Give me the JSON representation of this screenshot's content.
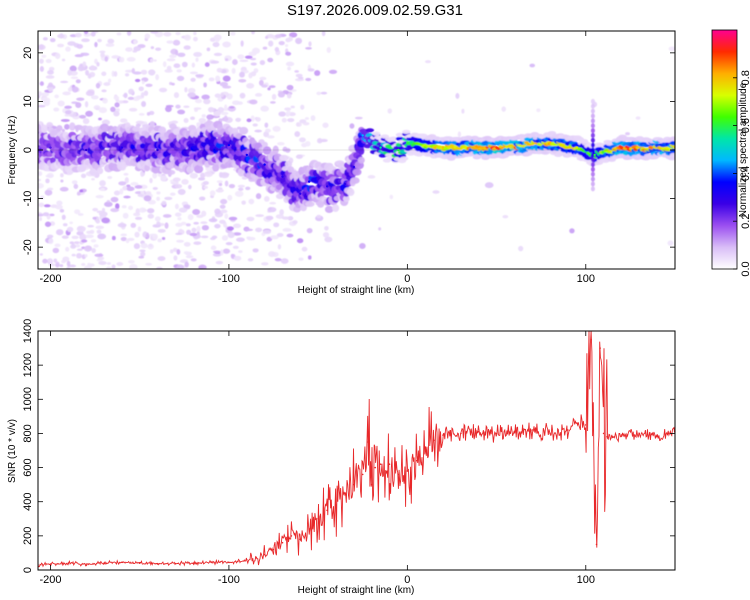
{
  "title": "S197.2026.009.02.59.G31",
  "chart_data": [
    {
      "type": "heatmap",
      "name": "spectrogram",
      "xlabel": "Height of straight line (km)",
      "ylabel": "Frequency (Hz)",
      "xlim": [
        -207,
        150
      ],
      "ylim": [
        -24.5,
        24.5
      ],
      "x_ticks": [
        -200,
        -100,
        0,
        100
      ],
      "y_ticks": [
        -20,
        -10,
        0,
        10,
        20
      ],
      "colorbar": {
        "label": "Normalized spectral amplitude",
        "range": [
          0,
          1
        ],
        "ticks": [
          0.0,
          0.2,
          0.4,
          0.6,
          0.8
        ],
        "tick_labels": [
          "0.0",
          "0.2",
          "0.4",
          "0.6",
          "0.8"
        ],
        "colormap": [
          "#ffffff",
          "#d9bdf7",
          "#9b4ff0",
          "#3a00e6",
          "#0000ff",
          "#00b8ff",
          "#00e6a8",
          "#40ff00",
          "#d8ff00",
          "#ffae00",
          "#ff2a00",
          "#ff0090"
        ]
      },
      "frequency_trace": [
        {
          "x": -200,
          "y": 0.5,
          "amp": 0.25
        },
        {
          "x": -180,
          "y": 0.0,
          "amp": 0.28
        },
        {
          "x": -160,
          "y": 0.5,
          "amp": 0.3
        },
        {
          "x": -140,
          "y": 0.0,
          "amp": 0.3
        },
        {
          "x": -120,
          "y": 0.5,
          "amp": 0.32
        },
        {
          "x": -100,
          "y": 1.0,
          "amp": 0.35
        },
        {
          "x": -90,
          "y": -1.0,
          "amp": 0.35
        },
        {
          "x": -80,
          "y": -3.0,
          "amp": 0.35
        },
        {
          "x": -70,
          "y": -5.5,
          "amp": 0.3
        },
        {
          "x": -60,
          "y": -9.0,
          "amp": 0.3
        },
        {
          "x": -55,
          "y": -6.5,
          "amp": 0.35
        },
        {
          "x": -45,
          "y": -7.5,
          "amp": 0.3
        },
        {
          "x": -35,
          "y": -7.0,
          "amp": 0.3
        },
        {
          "x": -30,
          "y": -3.5,
          "amp": 0.3
        },
        {
          "x": -25,
          "y": 3.0,
          "amp": 0.45
        },
        {
          "x": -15,
          "y": 0.5,
          "amp": 0.55
        },
        {
          "x": -5,
          "y": 0.0,
          "amp": 0.6
        },
        {
          "x": 0,
          "y": 1.5,
          "amp": 0.6
        },
        {
          "x": 20,
          "y": 0.5,
          "amp": 0.8
        },
        {
          "x": 50,
          "y": 0.5,
          "amp": 0.9
        },
        {
          "x": 80,
          "y": 1.5,
          "amp": 0.8
        },
        {
          "x": 95,
          "y": 0.5,
          "amp": 0.75
        },
        {
          "x": 105,
          "y": -1.0,
          "amp": 0.6
        },
        {
          "x": 120,
          "y": 0.5,
          "amp": 0.9
        },
        {
          "x": 150,
          "y": 0.5,
          "amp": 0.8
        }
      ]
    },
    {
      "type": "line",
      "name": "snr",
      "xlabel": "Height of straight line (km)",
      "ylabel": "SNR (10 * v/v)",
      "xlim": [
        -207,
        150
      ],
      "ylim": [
        0,
        1400
      ],
      "x_ticks": [
        -200,
        -100,
        0,
        100
      ],
      "y_ticks": [
        0,
        200,
        400,
        600,
        800,
        1000,
        1200,
        1400
      ],
      "color": "#e8282a",
      "series": [
        {
          "name": "SNR",
          "x": [
            -207,
            -200,
            -190,
            -180,
            -170,
            -160,
            -150,
            -140,
            -130,
            -120,
            -110,
            -100,
            -95,
            -90,
            -85,
            -80,
            -75,
            -70,
            -65,
            -60,
            -55,
            -50,
            -45,
            -40,
            -35,
            -30,
            -25,
            -22,
            -20,
            -18,
            -15,
            -10,
            -5,
            0,
            5,
            10,
            15,
            20,
            30,
            40,
            50,
            60,
            70,
            80,
            90,
            95,
            100,
            103,
            106,
            108,
            110,
            112,
            115,
            120,
            130,
            140,
            150
          ],
          "values": [
            30,
            35,
            40,
            35,
            40,
            45,
            40,
            35,
            38,
            40,
            45,
            45,
            50,
            60,
            70,
            90,
            120,
            160,
            200,
            180,
            240,
            300,
            350,
            380,
            450,
            500,
            560,
            750,
            500,
            600,
            620,
            620,
            560,
            580,
            640,
            720,
            760,
            790,
            800,
            810,
            800,
            810,
            820,
            800,
            820,
            860,
            850,
            1350,
            150,
            1300,
            800,
            780,
            780,
            790,
            800,
            790,
            810
          ]
        }
      ]
    }
  ]
}
